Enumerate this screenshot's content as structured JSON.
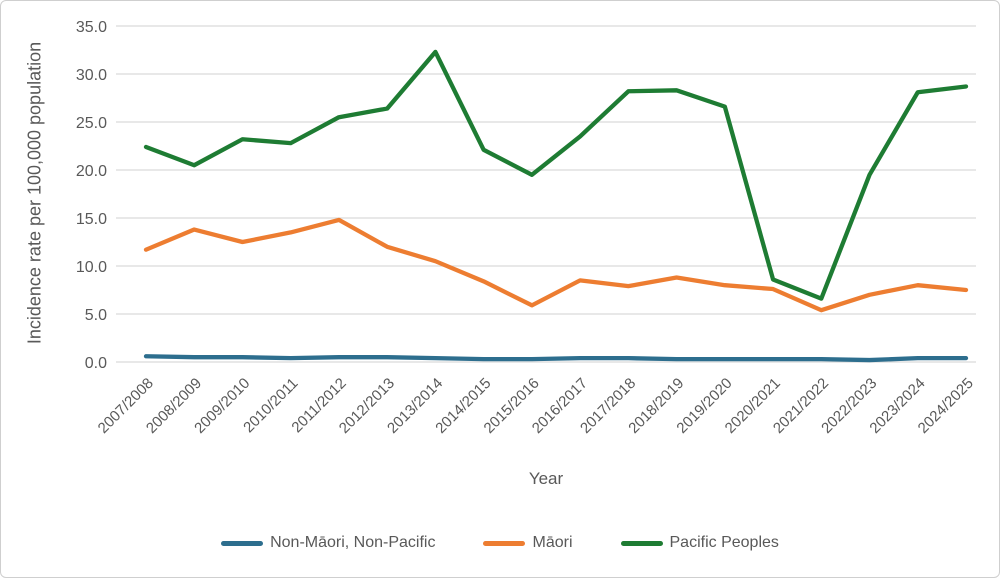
{
  "axes": {
    "x_title": "Year",
    "y_title": "Incidence rate per 100,000 population"
  },
  "colors": {
    "gridline": "#d9d9d9",
    "tick_text": "#595959",
    "background": "#ffffff",
    "frame_border": "#cfcfcf"
  },
  "chart_data": {
    "type": "line",
    "title": "",
    "xlabel": "Year",
    "ylabel": "Incidence rate per 100,000 population",
    "ylim": [
      0,
      35
    ],
    "grid": true,
    "legend_position": "bottom",
    "yticks": [
      0,
      5,
      10,
      15,
      20,
      25,
      30,
      35
    ],
    "ytick_labels": [
      "0.0",
      "5.0",
      "10.0",
      "15.0",
      "20.0",
      "25.0",
      "30.0",
      "35.0"
    ],
    "categories": [
      "2007/2008",
      "2008/2009",
      "2009/2010",
      "2010/2011",
      "2011/2012",
      "2012/2013",
      "2013/2014",
      "2014/2015",
      "2015/2016",
      "2016/2017",
      "2017/2018",
      "2018/2019",
      "2019/2020",
      "2020/2021",
      "2021/2022",
      "2022/2023",
      "2023/2024",
      "2024/2025"
    ],
    "series": [
      {
        "key": "non-maori-non-pacific",
        "name": "Non-Māori, Non-Pacific",
        "color": "#2d6e8e",
        "values": [
          0.6,
          0.5,
          0.5,
          0.4,
          0.5,
          0.5,
          0.4,
          0.3,
          0.3,
          0.4,
          0.4,
          0.3,
          0.3,
          0.3,
          0.3,
          0.2,
          0.4,
          0.4
        ]
      },
      {
        "key": "maori",
        "name": "Māori",
        "color": "#ed7d31",
        "values": [
          11.7,
          13.8,
          12.5,
          13.5,
          14.8,
          12.0,
          10.5,
          8.4,
          5.9,
          8.5,
          7.9,
          8.8,
          8.0,
          7.6,
          5.4,
          7.0,
          8.0,
          7.5
        ]
      },
      {
        "key": "pacific-peoples",
        "name": "Pacific Peoples",
        "color": "#1e7c33",
        "values": [
          22.4,
          20.5,
          23.2,
          22.8,
          25.5,
          26.4,
          32.3,
          22.1,
          19.5,
          23.5,
          28.2,
          28.3,
          26.6,
          8.6,
          6.6,
          19.5,
          28.1,
          28.7
        ]
      }
    ]
  }
}
